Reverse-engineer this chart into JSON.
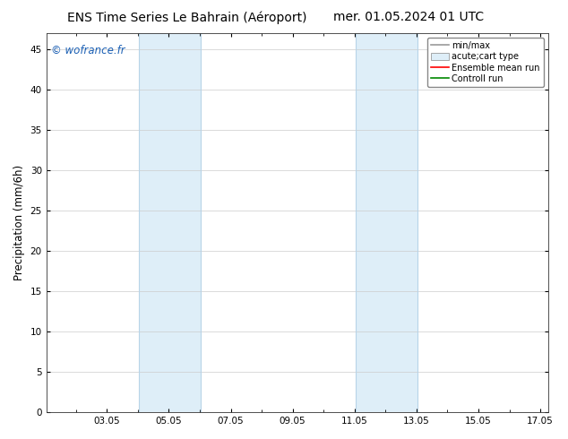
{
  "title_left": "ENS Time Series Le Bahrain (Aéroport)",
  "title_right": "mer. 01.05.2024 01 UTC",
  "ylabel": "Precipitation (mm/6h)",
  "watermark": "© wofrance.fr",
  "watermark_color": "#1a5fb4",
  "ylim": [
    0,
    47
  ],
  "yticks": [
    0,
    5,
    10,
    15,
    20,
    25,
    30,
    35,
    40,
    45
  ],
  "xtick_labels": [
    "03.05",
    "05.05",
    "07.05",
    "09.05",
    "11.05",
    "13.05",
    "15.05",
    "17.05"
  ],
  "xtick_positions": [
    2,
    4,
    6,
    8,
    10,
    12,
    14,
    16
  ],
  "xlim": [
    0.04,
    16.25
  ],
  "shaded_bands": [
    {
      "start": 3.04,
      "end": 5.04
    },
    {
      "start": 10.04,
      "end": 12.04
    }
  ],
  "band_color": "#deeef8",
  "band_edge_color": "#b8d4e8",
  "background_color": "#ffffff",
  "legend_labels": [
    "min/max",
    "acute;cart type",
    "Ensemble mean run",
    "Controll run"
  ],
  "legend_minmax_color": "#999999",
  "legend_box_color": "#deeef8",
  "legend_ens_color": "#ff0000",
  "legend_ctrl_color": "#008800",
  "title_fontsize": 10,
  "tick_fontsize": 7.5,
  "ylabel_fontsize": 8.5,
  "watermark_fontsize": 8.5,
  "legend_fontsize": 7
}
